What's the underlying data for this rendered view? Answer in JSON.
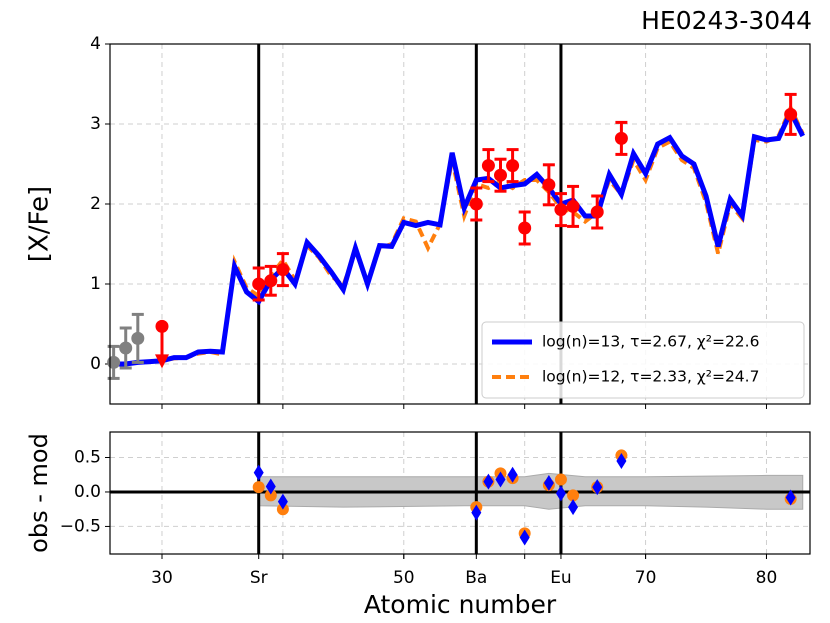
{
  "chart_data": [
    {
      "type": "line",
      "title": "HE0243-3044",
      "ylabel": "[X/Fe]",
      "xlim": [
        25.7,
        83.6
      ],
      "ylim": [
        -0.5,
        4
      ],
      "yticks": [
        0,
        1,
        2,
        3,
        4
      ],
      "xgrid": [
        30,
        40,
        50,
        60,
        70,
        80
      ],
      "vlines": [
        38,
        56,
        63
      ],
      "grid": true,
      "legend": "lower right",
      "x": [
        26,
        27,
        28,
        29,
        30,
        31,
        32,
        33,
        34,
        35,
        36,
        37,
        38,
        39,
        40,
        41,
        42,
        43,
        44,
        45,
        46,
        47,
        48,
        49,
        50,
        51,
        52,
        53,
        54,
        55,
        56,
        57,
        58,
        59,
        60,
        61,
        62,
        63,
        64,
        65,
        66,
        67,
        68,
        69,
        70,
        71,
        72,
        73,
        74,
        75,
        76,
        77,
        78,
        79,
        80,
        81,
        82,
        83
      ],
      "series": [
        {
          "name": "log(n)=13, τ=2.67, χ²=22.6",
          "color": "#0000ff",
          "style": "solid",
          "values": [
            0.0,
            0.0,
            0.02,
            0.03,
            0.04,
            0.08,
            0.08,
            0.15,
            0.16,
            0.15,
            1.22,
            0.9,
            0.78,
            1.05,
            1.2,
            1.0,
            1.52,
            1.35,
            1.15,
            0.93,
            1.45,
            1.0,
            1.48,
            1.47,
            1.77,
            1.73,
            1.77,
            1.74,
            2.64,
            1.95,
            2.3,
            2.32,
            2.2,
            2.23,
            2.25,
            2.37,
            2.2,
            2.0,
            2.05,
            1.85,
            1.85,
            2.37,
            2.12,
            2.63,
            2.38,
            2.75,
            2.83,
            2.6,
            2.5,
            2.1,
            1.47,
            2.06,
            1.85,
            2.84,
            2.8,
            2.82,
            3.15,
            2.85
          ]
        },
        {
          "name": "log(n)=12, τ=2.33, χ²=24.7",
          "color": "#ff7f0e",
          "style": "dashed",
          "values": [
            0.0,
            0.0,
            0.02,
            0.03,
            0.04,
            0.07,
            0.08,
            0.13,
            0.15,
            0.12,
            1.28,
            0.95,
            0.85,
            1.1,
            1.3,
            1.05,
            1.48,
            1.33,
            1.1,
            0.98,
            1.42,
            1.02,
            1.45,
            1.5,
            1.82,
            1.78,
            1.45,
            1.75,
            2.55,
            1.85,
            2.25,
            2.2,
            2.28,
            2.2,
            2.3,
            2.3,
            2.15,
            1.95,
            1.9,
            1.78,
            1.9,
            2.3,
            2.12,
            2.55,
            2.3,
            2.7,
            2.78,
            2.55,
            2.45,
            2.02,
            1.38,
            2.0,
            1.82,
            2.8,
            2.78,
            2.85,
            3.2,
            2.88
          ]
        }
      ],
      "observations": {
        "color": "#ff0000",
        "z": [
          38,
          39,
          40,
          56,
          57,
          58,
          59,
          60,
          62,
          63,
          64,
          66,
          68,
          82
        ],
        "values": [
          1.0,
          1.04,
          1.18,
          2.0,
          2.48,
          2.36,
          2.48,
          1.7,
          2.24,
          1.93,
          1.97,
          1.9,
          2.82,
          3.12
        ],
        "errors": [
          0.2,
          0.18,
          0.2,
          0.2,
          0.2,
          0.2,
          0.2,
          0.2,
          0.25,
          0.2,
          0.25,
          0.2,
          0.2,
          0.25
        ]
      },
      "upper_limits": {
        "color": "#ff0000",
        "z": [
          30
        ],
        "values": [
          0.47
        ]
      },
      "excluded": {
        "color": "#808080",
        "z": [
          26,
          27,
          28
        ],
        "values": [
          0.02,
          0.2,
          0.32
        ],
        "errors": [
          0.2,
          0.25,
          0.3
        ]
      }
    },
    {
      "type": "scatter",
      "ylabel": "obs - mod",
      "xlabel": "Atomic number",
      "xlim": [
        25.7,
        83.6
      ],
      "ylim": [
        -0.9,
        0.87
      ],
      "yticks": [
        0.5,
        {
          "value": 0,
          "label": "0.0"
        },
        {
          "value": -0.5,
          "label": "−0.5"
        }
      ],
      "xticks": [
        30,
        {
          "value": 38,
          "label": "Sr"
        },
        50,
        {
          "value": 56,
          "label": "Ba"
        },
        {
          "value": 63,
          "label": "Eu"
        },
        70,
        80
      ],
      "xgrid": [
        30,
        40,
        50,
        60,
        70,
        80
      ],
      "vlines": [
        38,
        56,
        63
      ],
      "hline": 0,
      "grid": true,
      "band": {
        "color": "#c8c8c8",
        "x": [
          38,
          45,
          55,
          60,
          62,
          65,
          70,
          75,
          80,
          83
        ],
        "upper": [
          0.22,
          0.22,
          0.22,
          0.22,
          0.27,
          0.22,
          0.22,
          0.23,
          0.24,
          0.24
        ],
        "lower": [
          -0.2,
          -0.22,
          -0.2,
          -0.2,
          -0.25,
          -0.2,
          -0.2,
          -0.22,
          -0.25,
          -0.25
        ]
      },
      "series": [
        {
          "color": "#ff7f0e",
          "marker": "circle",
          "x": [
            38,
            39,
            40,
            56,
            57,
            58,
            59,
            60,
            62,
            63,
            64,
            66,
            68,
            82
          ],
          "values": [
            0.07,
            -0.05,
            -0.25,
            -0.22,
            0.15,
            0.27,
            0.2,
            -0.6,
            0.1,
            0.18,
            -0.05,
            0.07,
            0.53,
            -0.1
          ]
        },
        {
          "color": "#0000ff",
          "marker": "diamond",
          "x": [
            38,
            39,
            40,
            56,
            57,
            58,
            59,
            60,
            62,
            63,
            64,
            66,
            68,
            82
          ],
          "values": [
            0.28,
            0.08,
            -0.14,
            -0.3,
            0.15,
            0.18,
            0.25,
            -0.66,
            0.13,
            -0.02,
            -0.22,
            0.07,
            0.45,
            -0.08
          ]
        }
      ]
    }
  ]
}
